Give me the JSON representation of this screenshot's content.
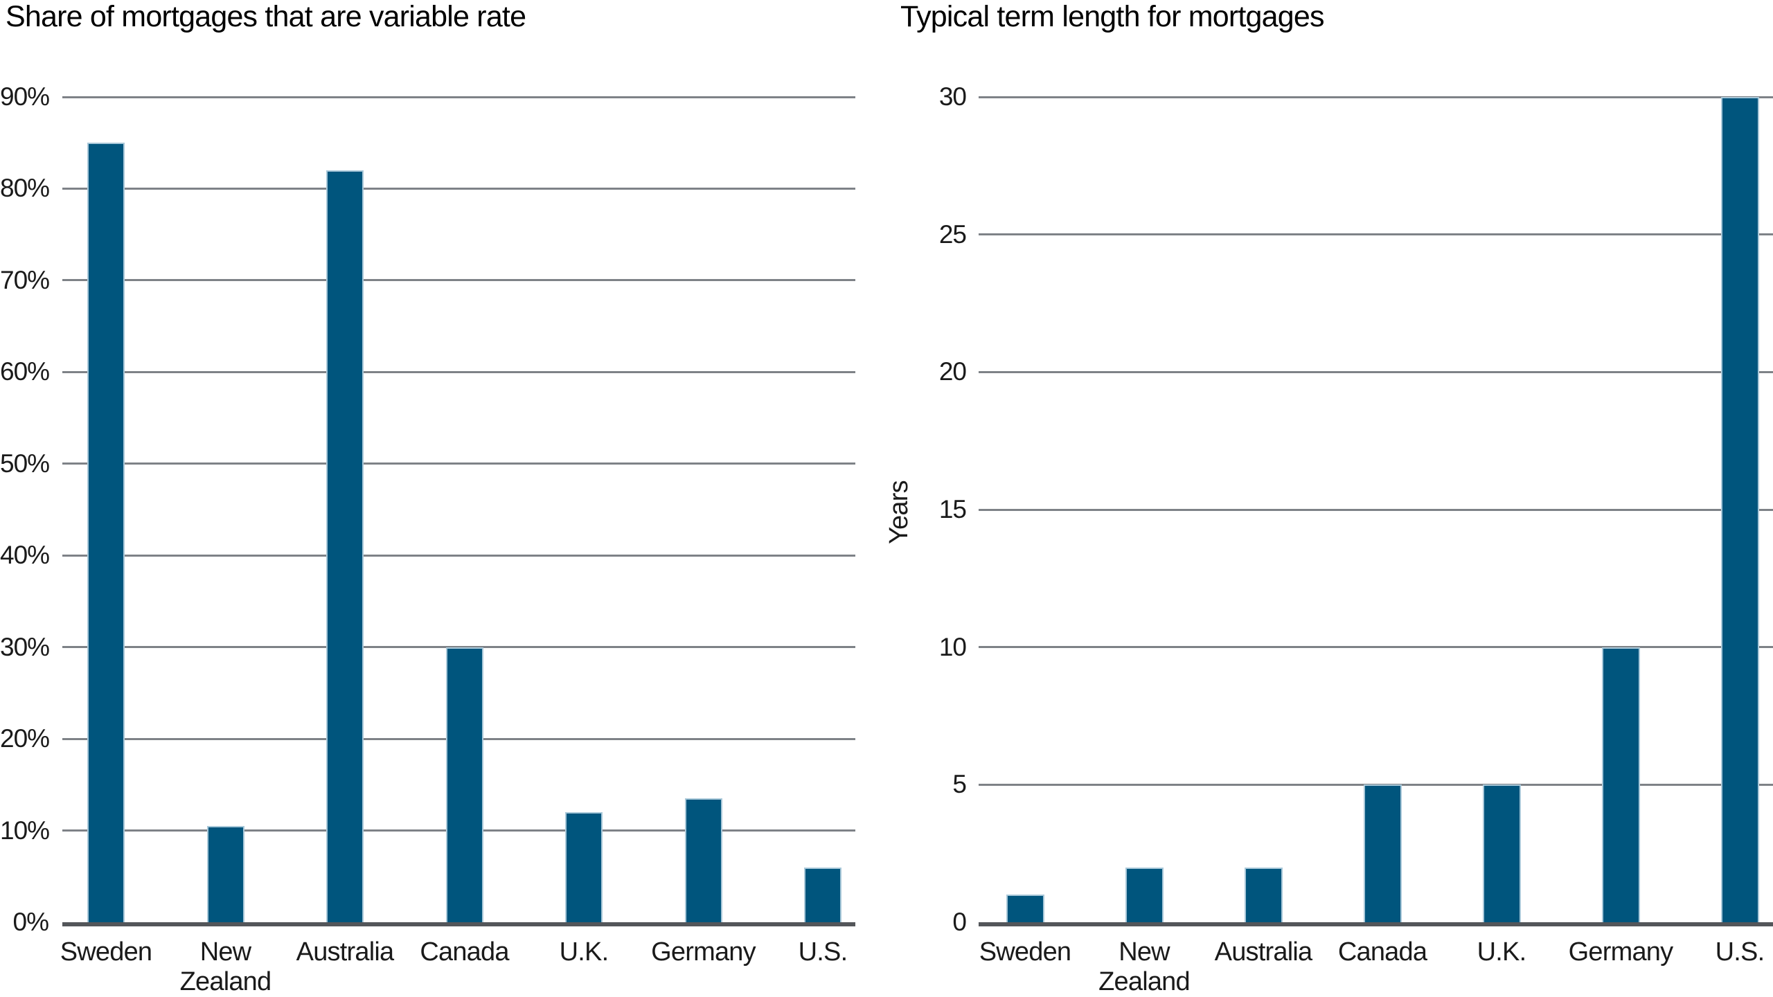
{
  "page": {
    "background": "#ffffff"
  },
  "colors": {
    "bar_fill": "#00557d",
    "bar_stroke": "#a9c8d9",
    "gridline": "#7e8287",
    "baseline": "#53565a",
    "text": "#1a1a1a",
    "title_text": "#000000"
  },
  "chart_data": [
    {
      "type": "bar",
      "title": "Share of mortgages that are variable rate",
      "categories": [
        "Sweden",
        "New Zealand",
        "Australia",
        "Canada",
        "U.K.",
        "Germany",
        "U.S."
      ],
      "values": [
        85,
        10.5,
        82,
        30,
        12,
        13.5,
        6
      ],
      "xlabel": "",
      "ylabel": "",
      "ylim": [
        0,
        90
      ],
      "yticks": [
        0,
        10,
        20,
        30,
        40,
        50,
        60,
        70,
        80,
        90
      ],
      "ytick_labels": [
        "0%",
        "10%",
        "20%",
        "30%",
        "40%",
        "50%",
        "60%",
        "70%",
        "80%",
        "90%"
      ],
      "grid": "horizontal",
      "legend": "none",
      "bar_color": "#00557d"
    },
    {
      "type": "bar",
      "title": "Typical term length for mortgages",
      "categories": [
        "Sweden",
        "New Zealand",
        "Australia",
        "Canada",
        "U.K.",
        "Germany",
        "U.S."
      ],
      "values": [
        1,
        2,
        2,
        5,
        5,
        10,
        30
      ],
      "xlabel": "",
      "ylabel": "Years",
      "ylim": [
        0,
        30
      ],
      "yticks": [
        0,
        5,
        10,
        15,
        20,
        25,
        30
      ],
      "ytick_labels": [
        "0",
        "5",
        "10",
        "15",
        "20",
        "25",
        "30"
      ],
      "grid": "horizontal",
      "legend": "none",
      "bar_color": "#00557d"
    }
  ]
}
